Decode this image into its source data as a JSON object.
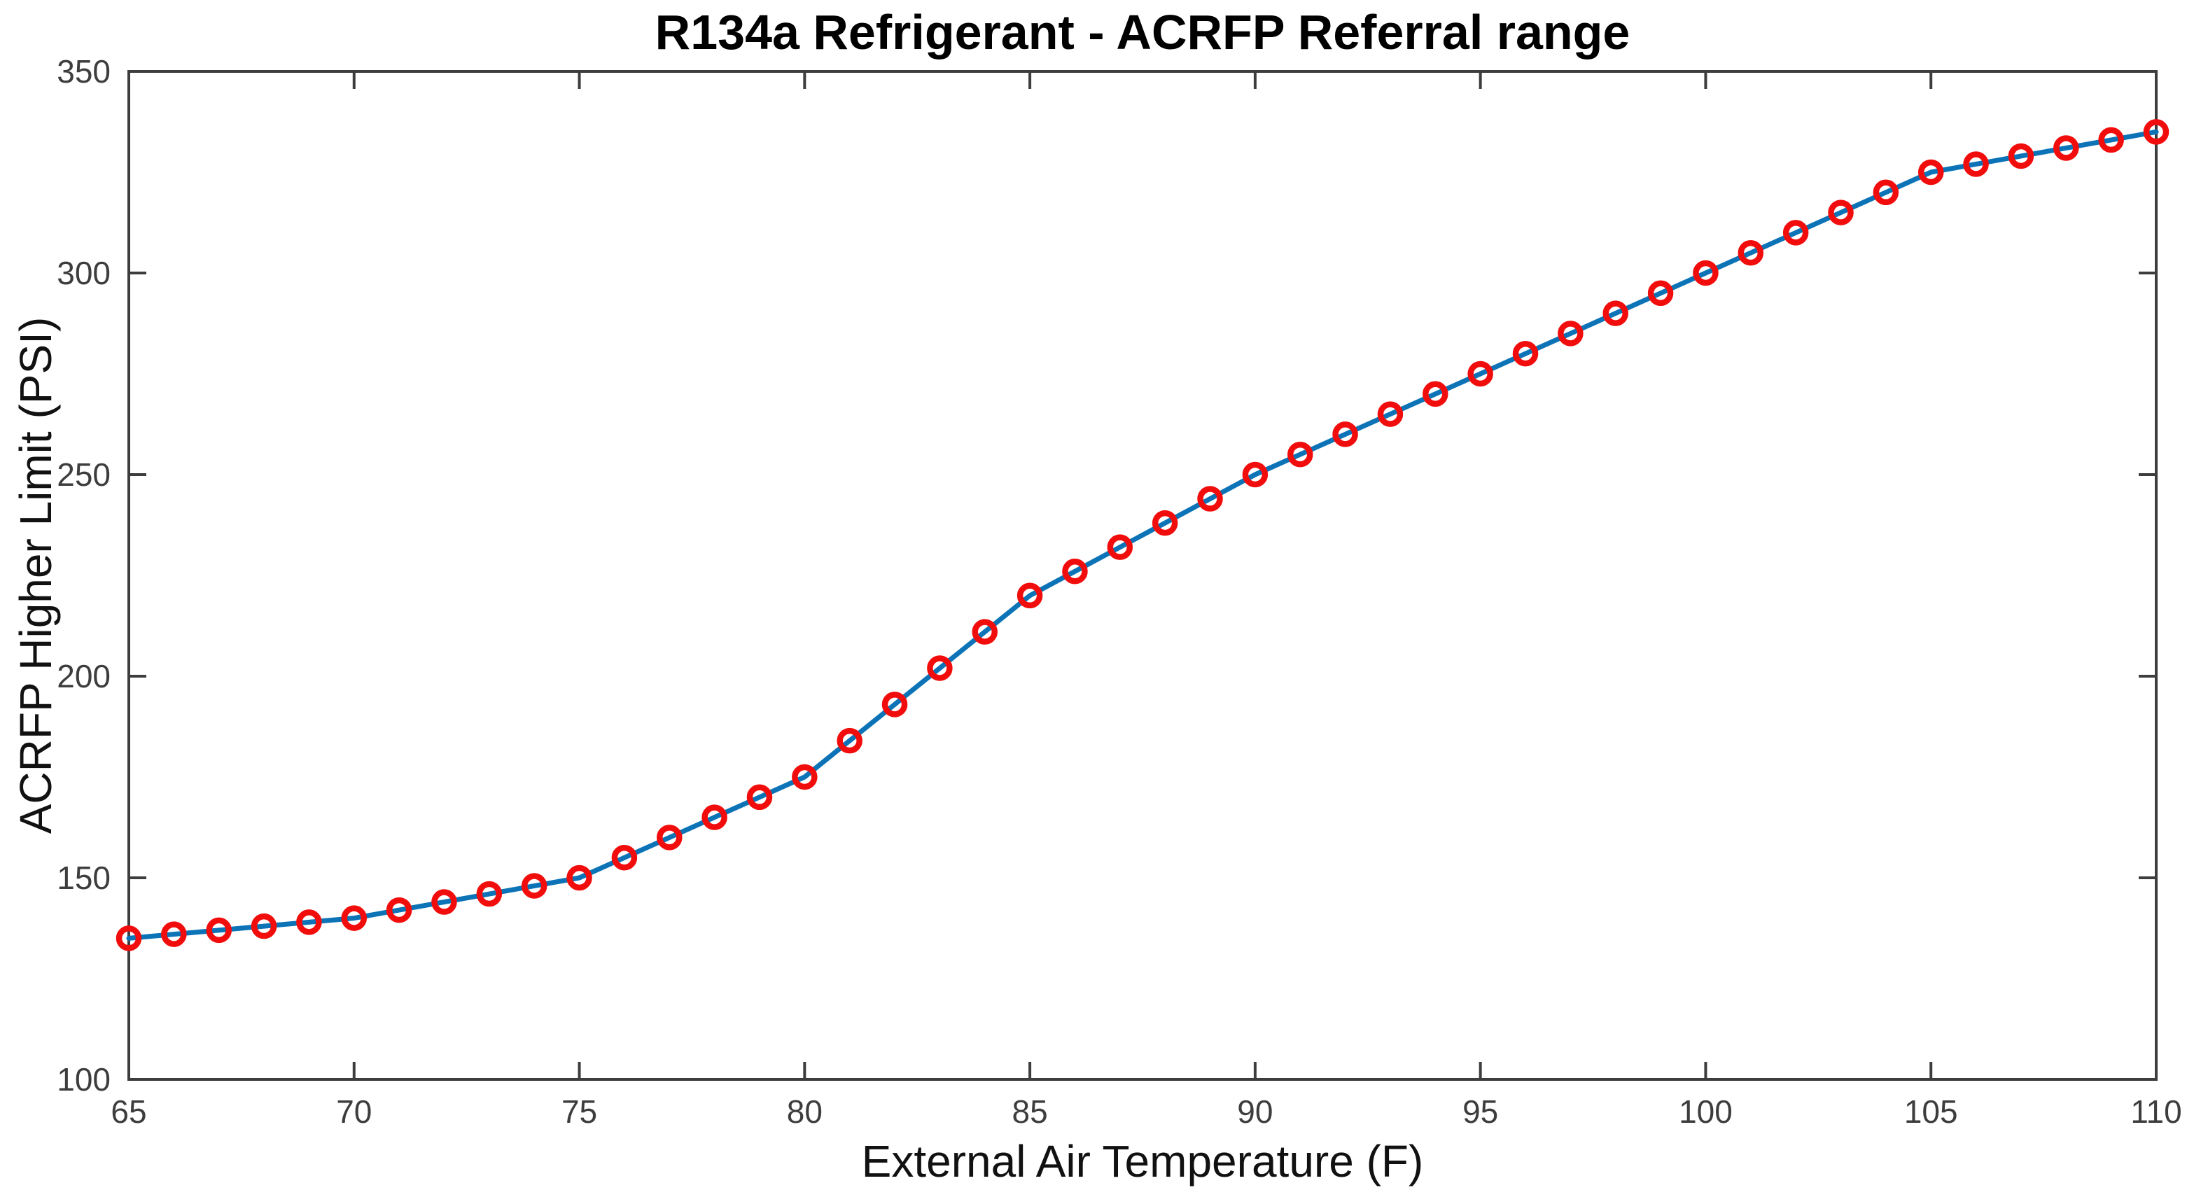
{
  "chart_data": {
    "type": "line",
    "title": "R134a Refrigerant - ACRFP Referral range",
    "xlabel": "External Air Temperature (F)",
    "ylabel": "ACRFP Higher Limit (PSI)",
    "series": [
      {
        "name": "ACRFP Higher Limit",
        "x": [
          65,
          66,
          67,
          68,
          69,
          70,
          71,
          72,
          73,
          74,
          75,
          76,
          77,
          78,
          79,
          80,
          81,
          82,
          83,
          84,
          85,
          86,
          87,
          88,
          89,
          90,
          91,
          92,
          93,
          94,
          95,
          96,
          97,
          98,
          99,
          100,
          101,
          102,
          103,
          104,
          105,
          106,
          107,
          108,
          109,
          110
        ],
        "y": [
          135,
          136,
          137,
          138,
          139,
          140,
          142,
          144,
          146,
          148,
          150,
          155,
          160,
          165,
          170,
          175,
          184,
          193,
          202,
          211,
          220,
          226,
          232,
          238,
          244,
          250,
          255,
          260,
          265,
          270,
          275,
          280,
          285,
          290,
          295,
          300,
          305,
          310,
          315,
          320,
          325,
          327,
          329,
          331,
          333,
          335
        ]
      }
    ],
    "xlim": [
      65,
      110
    ],
    "ylim": [
      100,
      350
    ],
    "xticks": [
      65,
      70,
      75,
      80,
      85,
      90,
      95,
      100,
      105,
      110
    ],
    "yticks": [
      100,
      150,
      200,
      250,
      300,
      350
    ],
    "grid": false,
    "box": true,
    "tick_direction": "in",
    "legend_position": "none",
    "line_color": "#0d73b7",
    "marker": "circle-hollow",
    "marker_color": "#f20d0d",
    "axis_color": "#3d3d3d",
    "title_color": "#000000",
    "label_color": "#111111",
    "background_color": "#ffffff"
  }
}
